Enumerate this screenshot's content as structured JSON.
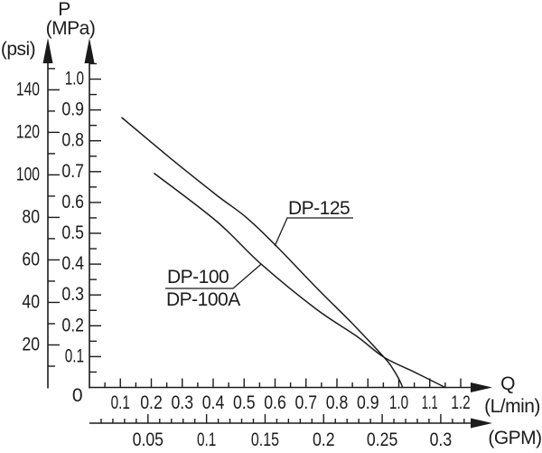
{
  "labels": {
    "p_symbol": "P",
    "mpa_unit": "(MPa)",
    "psi_unit": "(psi)",
    "q_symbol": "Q",
    "lmin_unit": "(L/min)",
    "gpm_unit": "(GPM)",
    "origin_zero": "0",
    "dp125": "DP-125",
    "dp100": "DP-100",
    "dp100a": "DP-100A"
  },
  "chart_data": {
    "type": "line",
    "title": "",
    "description": "Pump pressure vs. flow performance curves",
    "x_axis_primary": {
      "symbol": "Q",
      "unit": "(L/min)",
      "origin_label": "0",
      "tick_labels": [
        "0.1",
        "0.2",
        "0.3",
        "0.4",
        "0.5",
        "0.6",
        "0.7",
        "0.8",
        "0.9",
        "1.0",
        "1.1",
        "1.2"
      ],
      "tick_values": [
        0.1,
        0.2,
        0.3,
        0.4,
        0.5,
        0.6,
        0.7,
        0.8,
        0.9,
        1.0,
        1.1,
        1.2
      ],
      "minor_step": 0.05,
      "range": [
        0,
        1.25
      ],
      "arrow": true
    },
    "x_axis_secondary": {
      "unit": "(GPM)",
      "tick_labels": [
        "0.05",
        "0.1",
        "0.15",
        "0.2",
        "0.25",
        "0.3"
      ],
      "tick_values": [
        0.05,
        0.1,
        0.15,
        0.2,
        0.25,
        0.3
      ],
      "minor_step": 0.01,
      "minor_max": 0.32,
      "lmin_per_gpm": 3.785,
      "arrow": true
    },
    "y_axis_primary": {
      "symbol": "P",
      "unit": "(MPa)",
      "tick_labels": [
        "0.1",
        "0.2",
        "0.3",
        "0.4",
        "0.5",
        "0.6",
        "0.7",
        "0.8",
        "0.9",
        "1.0"
      ],
      "tick_values": [
        0.1,
        0.2,
        0.3,
        0.4,
        0.5,
        0.6,
        0.7,
        0.8,
        0.9,
        1.0
      ],
      "minor_step": 0.05,
      "minor_max": 1.05,
      "range": [
        0,
        1.08
      ],
      "arrow": true
    },
    "y_axis_secondary": {
      "unit": "(psi)",
      "tick_labels": [
        "20",
        "40",
        "60",
        "80",
        "100",
        "120",
        "140"
      ],
      "tick_values": [
        20,
        40,
        60,
        80,
        100,
        120,
        140
      ],
      "minor_step": 10,
      "minor_max": 150,
      "psi_per_mpa": 145.04,
      "arrow": true
    },
    "series": [
      {
        "name": "DP-125",
        "points_q_lmin_p_mpa": [
          [
            0.105,
            0.875
          ],
          [
            0.266,
            0.74
          ],
          [
            0.412,
            0.623
          ],
          [
            0.505,
            0.553
          ],
          [
            0.601,
            0.462
          ],
          [
            0.733,
            0.324
          ],
          [
            0.85,
            0.207
          ],
          [
            0.952,
            0.098
          ],
          [
            0.98,
            0.062
          ],
          [
            1.005,
            0.018
          ],
          [
            1.012,
            0.0
          ]
        ]
      },
      {
        "name": "DP-100 / DP-100A",
        "points_q_lmin_p_mpa": [
          [
            0.21,
            0.694
          ],
          [
            0.412,
            0.538
          ],
          [
            0.555,
            0.4
          ],
          [
            0.733,
            0.254
          ],
          [
            0.864,
            0.166
          ],
          [
            0.952,
            0.098
          ],
          [
            1.05,
            0.05
          ],
          [
            1.15,
            0.0
          ]
        ]
      }
    ],
    "annotations": [
      {
        "text": "DP-125",
        "anchor_q": 0.599,
        "anchor_p": 0.459
      },
      {
        "text": "DP-100",
        "anchor_q": 0.555,
        "anchor_p": 0.4
      },
      {
        "text": "DP-100A",
        "anchor_q": 0.555,
        "anchor_p": 0.4
      }
    ],
    "legend": "labels drawn on plot with leader lines",
    "grid": false,
    "colors": {
      "line": "#1b1b1b",
      "background": "#ffffff"
    }
  }
}
